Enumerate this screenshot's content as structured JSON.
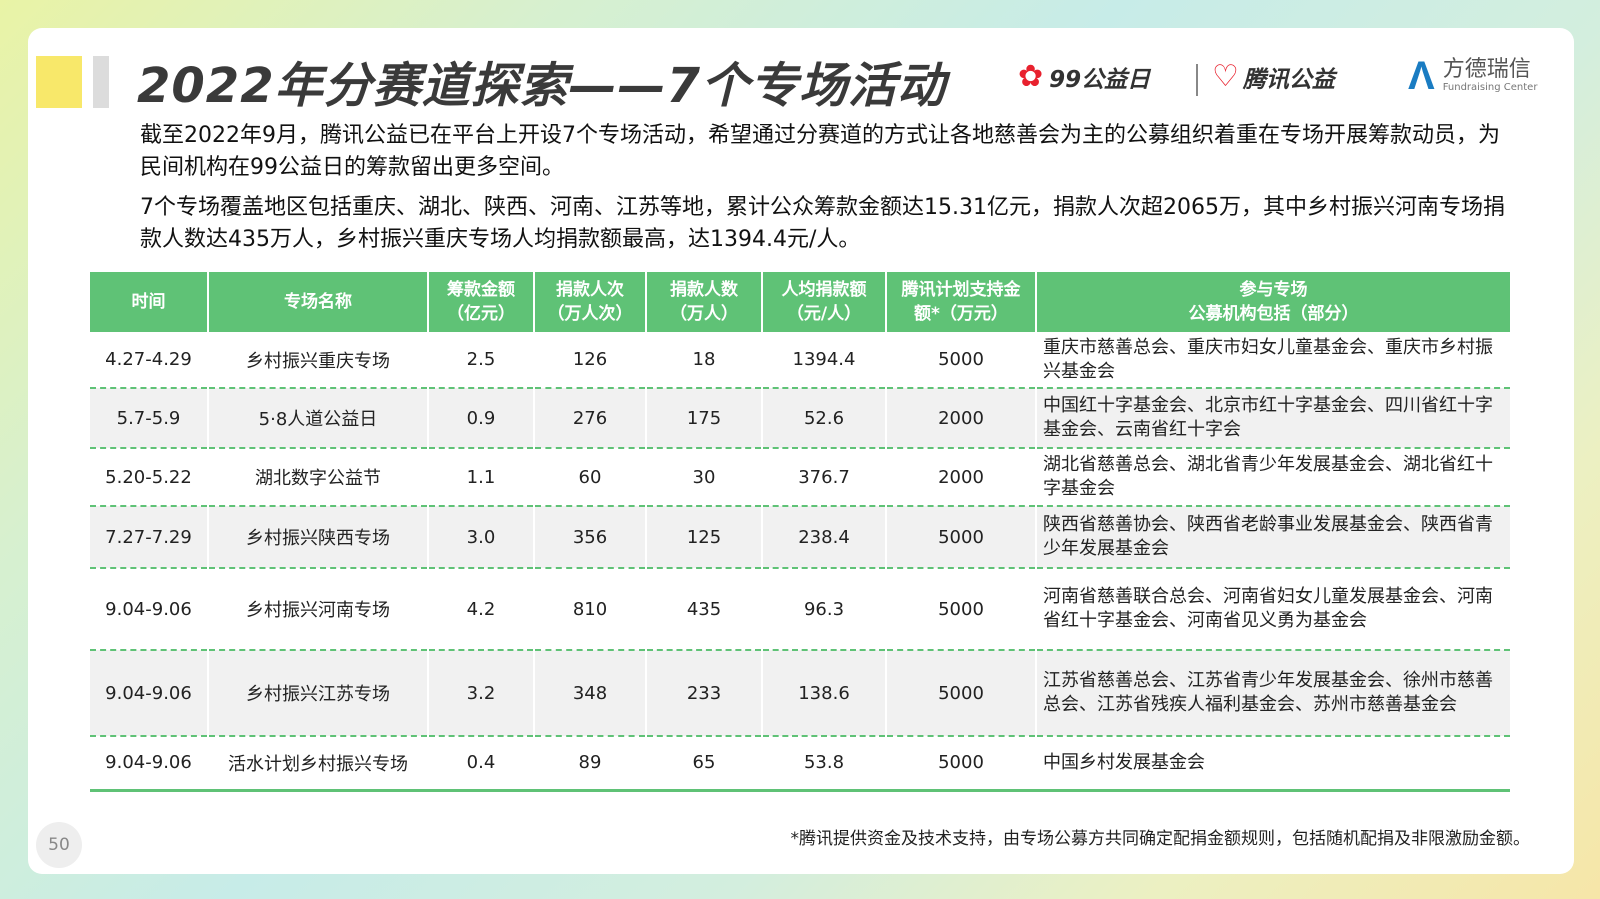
{
  "title": "2022年分赛道探索——7个专场活动",
  "logos": {
    "logo1_icon": "flower-icon",
    "logo1_text": "99公益日",
    "logo2_icon": "heart-icon",
    "logo2_text": "腾讯公益",
    "logo3_icon": "a-logo-icon",
    "logo3_cn": "方德瑞信",
    "logo3_en": "Fundraising Center"
  },
  "paragraph1": "截至2022年9月，腾讯公益已在平台上开设7个专场活动，希望通过分赛道的方式让各地慈善会为主的公募组织着重在专场开展筹款动员，为民间机构在99公益日的筹款留出更多空间。",
  "paragraph2": "7个专场覆盖地区包括重庆、湖北、陕西、河南、江苏等地，累计公众筹款金额达15.31亿元，捐款人次超2065万，其中乡村振兴河南专场捐款人数达435万人，乡村振兴重庆专场人均捐款额最高，达1394.4元/人。",
  "table": {
    "headers": {
      "time": "时间",
      "name": "专场名称",
      "amount": "筹款金额\n（亿元）",
      "donations": "捐款人次\n（万人次）",
      "donors": "捐款人数\n（万人）",
      "per_capita": "人均捐款额\n（元/人）",
      "support": "腾讯计划支持金\n额*（万元）",
      "orgs": "参与专场\n公募机构包括（部分）"
    },
    "rows": [
      {
        "time": "4.27-4.29",
        "name": "乡村振兴重庆专场",
        "amount": "2.5",
        "donations": "126",
        "donors": "18",
        "per_capita": "1394.4",
        "support": "5000",
        "orgs": "重庆市慈善总会、重庆市妇女儿童基金会、重庆市乡村振兴基金会"
      },
      {
        "time": "5.7-5.9",
        "name": "5·8人道公益日",
        "amount": "0.9",
        "donations": "276",
        "donors": "175",
        "per_capita": "52.6",
        "support": "2000",
        "orgs": "中国红十字基金会、北京市红十字基金会、四川省红十字基金会、云南省红十字会"
      },
      {
        "time": "5.20-5.22",
        "name": "湖北数字公益节",
        "amount": "1.1",
        "donations": "60",
        "donors": "30",
        "per_capita": "376.7",
        "support": "2000",
        "orgs": "湖北省慈善总会、湖北省青少年发展基金会、湖北省红十字基金会"
      },
      {
        "time": "7.27-7.29",
        "name": "乡村振兴陕西专场",
        "amount": "3.0",
        "donations": "356",
        "donors": "125",
        "per_capita": "238.4",
        "support": "5000",
        "orgs": "陕西省慈善协会、陕西省老龄事业发展基金会、陕西省青少年发展基金会"
      },
      {
        "time": "9.04-9.06",
        "name": "乡村振兴河南专场",
        "amount": "4.2",
        "donations": "810",
        "donors": "435",
        "per_capita": "96.3",
        "support": "5000",
        "orgs": "河南省慈善联合总会、河南省妇女儿童发展基金会、河南省红十字基金会、河南省见义勇为基金会"
      },
      {
        "time": "9.04-9.06",
        "name": "乡村振兴江苏专场",
        "amount": "3.2",
        "donations": "348",
        "donors": "233",
        "per_capita": "138.6",
        "support": "5000",
        "orgs": "江苏省慈善总会、江苏省青少年发展基金会、徐州市慈善总会、江苏省残疾人福利基金会、苏州市慈善基金会"
      },
      {
        "time": "9.04-9.06",
        "name": "活水计划乡村振兴专场",
        "amount": "0.4",
        "donations": "89",
        "donors": "65",
        "per_capita": "53.8",
        "support": "5000",
        "orgs": "中国乡村发展基金会"
      }
    ]
  },
  "footnote": "*腾讯提供资金及技术支持，由专场公募方共同确定配捐金额规则，包括随机配捐及非限激励金额。",
  "page_number": "50",
  "colors": {
    "header_green": "#5fc276",
    "accent_red": "#e8212e",
    "accent_blue": "#1a7cc2",
    "deco_yellow": "#f8e86a"
  }
}
